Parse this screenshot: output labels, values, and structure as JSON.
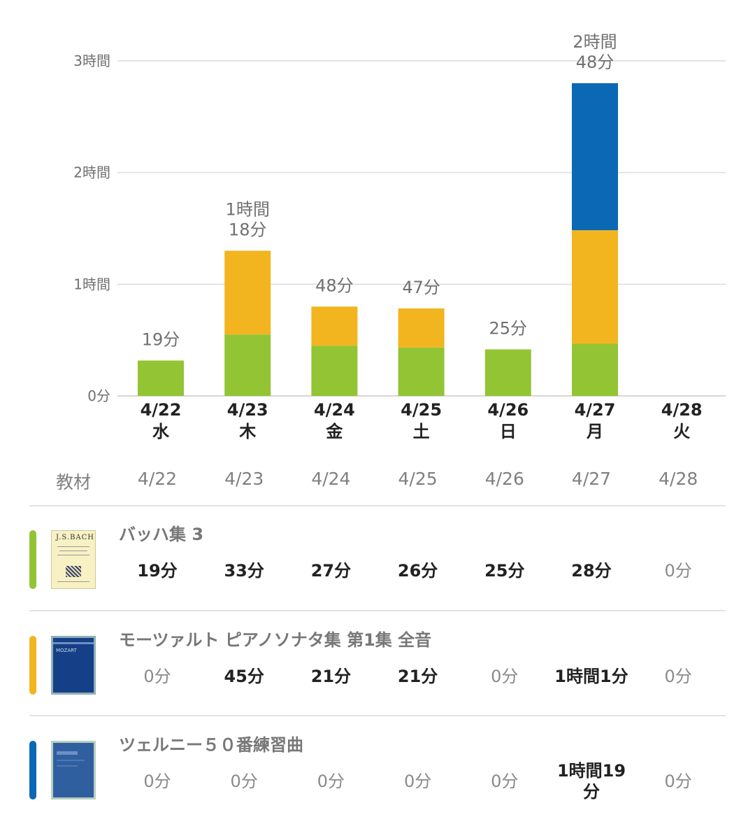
{
  "chart_data": {
    "type": "bar",
    "stacked": true,
    "categories": [
      "4/22",
      "4/23",
      "4/24",
      "4/25",
      "4/26",
      "4/27",
      "4/28"
    ],
    "weekdays": [
      "水",
      "木",
      "金",
      "土",
      "日",
      "月",
      "火"
    ],
    "y_ticks": [
      "0分",
      "1時間",
      "2時間",
      "3時間"
    ],
    "ylim_minutes": [
      0,
      180
    ],
    "grid": true,
    "series": [
      {
        "name": "バッハ集 3",
        "color": "#93c434",
        "values": [
          19,
          33,
          27,
          26,
          25,
          28,
          0
        ]
      },
      {
        "name": "モーツァルト ピアノソナタ集 第1集 全音",
        "color": "#f2b51f",
        "values": [
          0,
          45,
          21,
          21,
          0,
          61,
          0
        ]
      },
      {
        "name": "ツェルニー５０番練習曲",
        "color": "#0b68b4",
        "values": [
          0,
          0,
          0,
          0,
          0,
          79,
          0
        ]
      }
    ],
    "total_labels": [
      [
        "19分"
      ],
      [
        "1時間",
        "18分"
      ],
      [
        "48分"
      ],
      [
        "47分"
      ],
      [
        "25分"
      ],
      [
        "2時間",
        "48分"
      ],
      []
    ]
  },
  "table": {
    "header_label": "教材",
    "dates": [
      "4/22",
      "4/23",
      "4/24",
      "4/25",
      "4/26",
      "4/27",
      "4/28"
    ],
    "rows": [
      {
        "title": "バッハ集 3",
        "color": "#93c434",
        "thumb": "bach-book-cover",
        "cover_text": "J.S.BACH",
        "cells": [
          "19分",
          "33分",
          "27分",
          "26分",
          "25分",
          "28分",
          "0分"
        ]
      },
      {
        "title": "モーツァルト ピアノソナタ集 第1集 全音",
        "color": "#f2b51f",
        "thumb": "mozart-book-cover",
        "cover_text": "MOZART",
        "cells": [
          "0分",
          "45分",
          "21分",
          "21分",
          "0分",
          "1時間1分",
          "0分"
        ]
      },
      {
        "title": "ツェルニー５０番練習曲",
        "color": "#0b68b4",
        "thumb": "czerny-book-cover",
        "cells": [
          "0分",
          "0分",
          "0分",
          "0分",
          "0分",
          "1時間19分",
          "0分"
        ]
      }
    ]
  }
}
